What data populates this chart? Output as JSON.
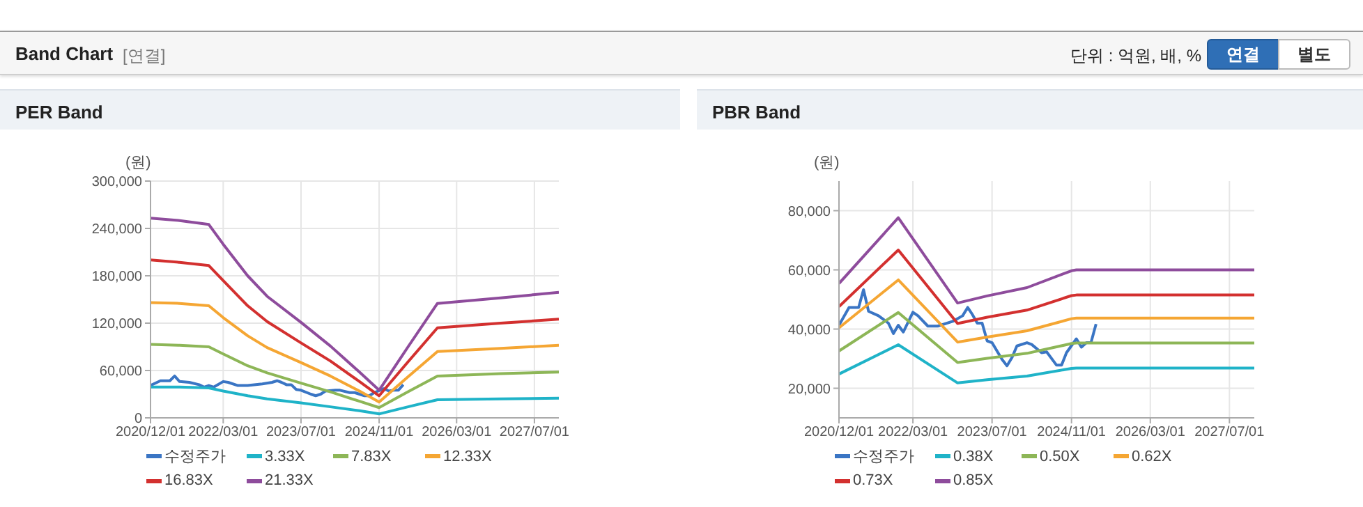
{
  "chart_data": [
    {
      "type": "other",
      "title": "Band Chart",
      "annotations": [
        "[연결]",
        "단위 : 억원, 배, %",
        "연결",
        "별도"
      ]
    },
    {
      "type": "line",
      "title": "PER Band",
      "ylabel": "(원)",
      "xlim": [
        "2020-12-01",
        "2027-12-01"
      ],
      "xticks": [
        {
          "value": "2020-12-01",
          "label": "2020/12/01"
        },
        {
          "value": "2022-03-01",
          "label": "2022/03/01"
        },
        {
          "value": "2023-07-01",
          "label": "2023/07/01"
        },
        {
          "value": "2024-11-01",
          "label": "2024/11/01"
        },
        {
          "value": "2026-03-01",
          "label": "2026/03/01"
        },
        {
          "value": "2027-07-01",
          "label": "2027/07/01"
        }
      ],
      "ylim": [
        0,
        300000
      ],
      "yticks": [
        {
          "value": 0,
          "label": "0"
        },
        {
          "value": 60000,
          "label": "60,000"
        },
        {
          "value": 120000,
          "label": "120,000"
        },
        {
          "value": 180000,
          "label": "180,000"
        },
        {
          "value": 240000,
          "label": "240,000"
        },
        {
          "value": 300000,
          "label": "300,000"
        }
      ],
      "grid": true,
      "legend": "bottom",
      "series": [
        {
          "name": "수정주가",
          "color": "#3a75c4",
          "x": [
            "2020-12",
            "2021-02",
            "2021-04",
            "2021-05",
            "2021-06",
            "2021-08",
            "2021-10",
            "2021-11",
            "2021-12",
            "2022-01",
            "2022-03",
            "2022-04",
            "2022-06",
            "2022-08",
            "2022-11",
            "2023-01",
            "2023-02",
            "2023-03",
            "2023-04",
            "2023-05",
            "2023-06",
            "2023-07",
            "2023-09",
            "2023-10",
            "2023-11",
            "2023-12",
            "2024-02",
            "2024-03",
            "2024-05",
            "2024-06",
            "2024-08",
            "2024-09",
            "2024-10",
            "2024-12",
            "2025-01",
            "2025-02",
            "2025-03",
            "2025-04"
          ],
          "values": [
            41000,
            47000,
            47000,
            53000,
            46000,
            45000,
            42000,
            39000,
            41000,
            39000,
            46000,
            45000,
            41000,
            41000,
            43000,
            45000,
            47000,
            45000,
            42000,
            42000,
            36000,
            35000,
            30000,
            28000,
            30000,
            34000,
            35000,
            35000,
            32000,
            32000,
            28000,
            28000,
            32000,
            37000,
            34000,
            35000,
            35000,
            42000
          ]
        },
        {
          "name": "3.33X",
          "color": "#1fb3c8",
          "x": [
            "2020-12",
            "2021-06",
            "2021-12",
            "2022-03",
            "2022-08",
            "2022-12",
            "2023-07",
            "2024-01",
            "2024-07",
            "2024-11",
            "2025-05",
            "2025-11",
            "2026-12",
            "2027-12"
          ],
          "values": [
            39000,
            39000,
            38000,
            34000,
            28000,
            24000,
            19000,
            14000,
            9000,
            5000,
            14000,
            23000,
            24000,
            25000
          ]
        },
        {
          "name": "7.83X",
          "color": "#8db657",
          "x": [
            "2020-12",
            "2021-06",
            "2021-12",
            "2022-03",
            "2022-08",
            "2022-12",
            "2023-07",
            "2024-01",
            "2024-07",
            "2024-11",
            "2025-05",
            "2025-11",
            "2026-12",
            "2027-12"
          ],
          "values": [
            93000,
            92000,
            90000,
            81000,
            66000,
            57000,
            44000,
            33000,
            21000,
            13000,
            33000,
            53000,
            56000,
            58000
          ]
        },
        {
          "name": "12.33X",
          "color": "#f5a633",
          "x": [
            "2020-12",
            "2021-06",
            "2021-12",
            "2022-03",
            "2022-08",
            "2022-12",
            "2023-07",
            "2024-01",
            "2024-07",
            "2024-11",
            "2025-05",
            "2025-11",
            "2026-12",
            "2027-12"
          ],
          "values": [
            146000,
            145000,
            142000,
            127000,
            104000,
            89000,
            70000,
            53000,
            34000,
            20000,
            52000,
            84000,
            88000,
            92000
          ]
        },
        {
          "name": "16.83X",
          "color": "#d3302f",
          "x": [
            "2020-12",
            "2021-06",
            "2021-12",
            "2022-03",
            "2022-08",
            "2022-12",
            "2023-07",
            "2024-01",
            "2024-07",
            "2024-11",
            "2025-05",
            "2025-11",
            "2026-12",
            "2027-12"
          ],
          "values": [
            200000,
            197000,
            193000,
            174000,
            142000,
            122000,
            95000,
            72000,
            46000,
            28000,
            71000,
            114000,
            120000,
            125000
          ]
        },
        {
          "name": "21.33X",
          "color": "#8e4c9c",
          "x": [
            "2020-12",
            "2021-06",
            "2021-12",
            "2022-03",
            "2022-08",
            "2022-12",
            "2023-07",
            "2024-01",
            "2024-07",
            "2024-11",
            "2025-05",
            "2025-11",
            "2026-12",
            "2027-12"
          ],
          "values": [
            253000,
            250000,
            245000,
            220000,
            180000,
            154000,
            121000,
            91000,
            58000,
            35000,
            90000,
            145000,
            152000,
            159000
          ]
        }
      ]
    },
    {
      "type": "line",
      "title": "PBR Band",
      "ylabel": "(원)",
      "xlim": [
        "2020-12-01",
        "2027-12-01"
      ],
      "xticks": [
        {
          "value": "2020-12-01",
          "label": "2020/12/01"
        },
        {
          "value": "2022-03-01",
          "label": "2022/03/01"
        },
        {
          "value": "2023-07-01",
          "label": "2023/07/01"
        },
        {
          "value": "2024-11-01",
          "label": "2024/11/01"
        },
        {
          "value": "2026-03-01",
          "label": "2026/03/01"
        },
        {
          "value": "2027-07-01",
          "label": "2027/07/01"
        }
      ],
      "ylim": [
        10000,
        90000
      ],
      "yticks": [
        {
          "value": 20000,
          "label": "20,000"
        },
        {
          "value": 40000,
          "label": "40,000"
        },
        {
          "value": 60000,
          "label": "60,000"
        },
        {
          "value": 80000,
          "label": "80,000"
        }
      ],
      "grid": true,
      "legend": "bottom",
      "series": [
        {
          "name": "수정주가",
          "color": "#3a75c4",
          "x": [
            "2020-12",
            "2021-02",
            "2021-04",
            "2021-05",
            "2021-06",
            "2021-08",
            "2021-10",
            "2021-11",
            "2021-12",
            "2022-01",
            "2022-03",
            "2022-04",
            "2022-06",
            "2022-08",
            "2022-11",
            "2023-01",
            "2023-02",
            "2023-03",
            "2023-04",
            "2023-05",
            "2023-06",
            "2023-07",
            "2023-09",
            "2023-10",
            "2023-11",
            "2023-12",
            "2024-02",
            "2024-03",
            "2024-05",
            "2024-06",
            "2024-08",
            "2024-09",
            "2024-10",
            "2024-12",
            "2025-01",
            "2025-02",
            "2025-03",
            "2025-04"
          ],
          "values": [
            41300,
            47300,
            47300,
            53300,
            46000,
            44500,
            42000,
            38500,
            41300,
            39000,
            45700,
            44500,
            41000,
            41000,
            42600,
            44500,
            47300,
            45000,
            42000,
            42000,
            36000,
            35400,
            29700,
            27600,
            30400,
            34300,
            35400,
            34800,
            32000,
            32300,
            27800,
            27800,
            32000,
            36700,
            33900,
            35400,
            35400,
            41700
          ]
        },
        {
          "name": "0.38X",
          "color": "#1fb3c8",
          "x": [
            "2020-12",
            "2021-12",
            "2022-12",
            "2023-06",
            "2024-02",
            "2024-11",
            "2024-12",
            "2027-12"
          ],
          "values": [
            24800,
            34700,
            21800,
            22900,
            24100,
            26700,
            26800,
            26800
          ]
        },
        {
          "name": "0.50X",
          "color": "#8db657",
          "x": [
            "2020-12",
            "2021-12",
            "2022-12",
            "2023-06",
            "2024-02",
            "2024-11",
            "2024-12",
            "2027-12"
          ],
          "values": [
            32600,
            45600,
            28700,
            30100,
            31800,
            35100,
            35300,
            35300
          ]
        },
        {
          "name": "0.62X",
          "color": "#f5a633",
          "x": [
            "2020-12",
            "2021-12",
            "2022-12",
            "2023-06",
            "2024-02",
            "2024-11",
            "2024-12",
            "2027-12"
          ],
          "values": [
            40400,
            56600,
            35600,
            37300,
            39400,
            43500,
            43700,
            43700
          ]
        },
        {
          "name": "0.73X",
          "color": "#d3302f",
          "x": [
            "2020-12",
            "2021-12",
            "2022-12",
            "2023-06",
            "2024-02",
            "2024-11",
            "2024-12",
            "2027-12"
          ],
          "values": [
            47600,
            66700,
            41900,
            44000,
            46400,
            51300,
            51500,
            51500
          ]
        },
        {
          "name": "0.85X",
          "color": "#8e4c9c",
          "x": [
            "2020-12",
            "2021-12",
            "2022-12",
            "2023-06",
            "2024-02",
            "2024-11",
            "2024-12",
            "2027-12"
          ],
          "values": [
            55400,
            77600,
            48800,
            51200,
            54000,
            59700,
            60000,
            60000
          ]
        }
      ]
    }
  ]
}
